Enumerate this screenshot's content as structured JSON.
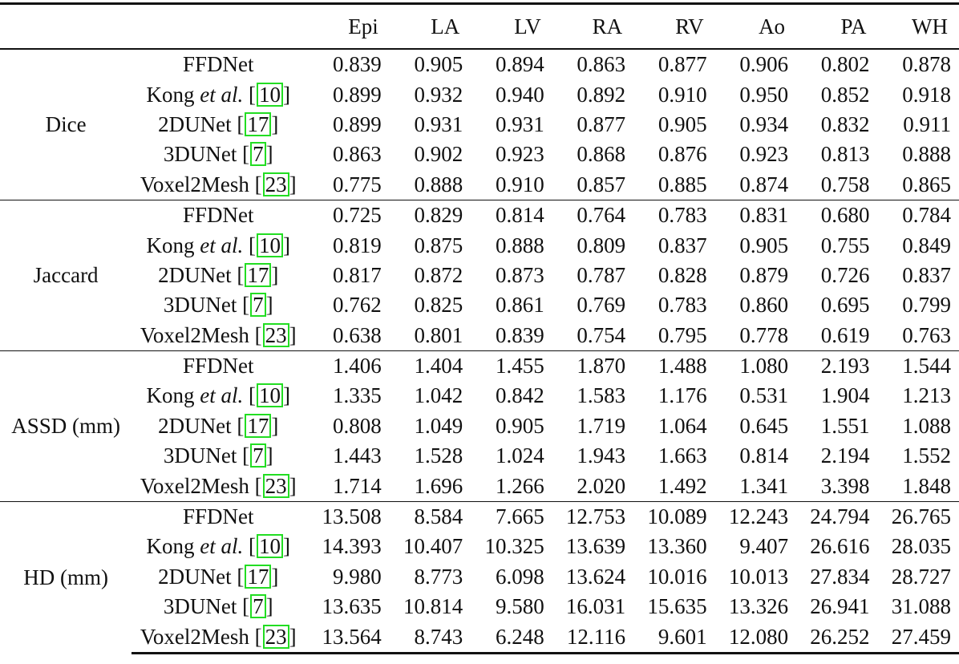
{
  "table": {
    "columns": [
      "",
      "",
      "Epi",
      "LA",
      "LV",
      "RA",
      "RV",
      "Ao",
      "PA",
      "WH"
    ],
    "citation_box_color": "#22dd22",
    "groups": [
      {
        "metric": "Dice",
        "rows": [
          {
            "method": "FFDNet",
            "method_italic": "",
            "cite": "",
            "values": [
              "0.839",
              "0.905",
              "0.894",
              "0.863",
              "0.877",
              "0.906",
              "0.802",
              "0.878"
            ]
          },
          {
            "method": "Kong ",
            "method_italic": "et al.",
            "cite": "10",
            "values": [
              "0.899",
              "0.932",
              "0.940",
              "0.892",
              "0.910",
              "0.950",
              "0.852",
              "0.918"
            ]
          },
          {
            "method": "2DUNet",
            "method_italic": "",
            "cite": "17",
            "values": [
              "0.899",
              "0.931",
              "0.931",
              "0.877",
              "0.905",
              "0.934",
              "0.832",
              "0.911"
            ]
          },
          {
            "method": "3DUNet",
            "method_italic": "",
            "cite": "7",
            "values": [
              "0.863",
              "0.902",
              "0.923",
              "0.868",
              "0.876",
              "0.923",
              "0.813",
              "0.888"
            ]
          },
          {
            "method": "Voxel2Mesh",
            "method_italic": "",
            "cite": "23",
            "values": [
              "0.775",
              "0.888",
              "0.910",
              "0.857",
              "0.885",
              "0.874",
              "0.758",
              "0.865"
            ]
          }
        ]
      },
      {
        "metric": "Jaccard",
        "rows": [
          {
            "method": "FFDNet",
            "method_italic": "",
            "cite": "",
            "values": [
              "0.725",
              "0.829",
              "0.814",
              "0.764",
              "0.783",
              "0.831",
              "0.680",
              "0.784"
            ]
          },
          {
            "method": "Kong ",
            "method_italic": "et al.",
            "cite": "10",
            "values": [
              "0.819",
              "0.875",
              "0.888",
              "0.809",
              "0.837",
              "0.905",
              "0.755",
              "0.849"
            ]
          },
          {
            "method": "2DUNet",
            "method_italic": "",
            "cite": "17",
            "values": [
              "0.817",
              "0.872",
              "0.873",
              "0.787",
              "0.828",
              "0.879",
              "0.726",
              "0.837"
            ]
          },
          {
            "method": "3DUNet",
            "method_italic": "",
            "cite": "7",
            "values": [
              "0.762",
              "0.825",
              "0.861",
              "0.769",
              "0.783",
              "0.860",
              "0.695",
              "0.799"
            ]
          },
          {
            "method": "Voxel2Mesh",
            "method_italic": "",
            "cite": "23",
            "values": [
              "0.638",
              "0.801",
              "0.839",
              "0.754",
              "0.795",
              "0.778",
              "0.619",
              "0.763"
            ]
          }
        ]
      },
      {
        "metric": "ASSD (mm)",
        "rows": [
          {
            "method": "FFDNet",
            "method_italic": "",
            "cite": "",
            "values": [
              "1.406",
              "1.404",
              "1.455",
              "1.870",
              "1.488",
              "1.080",
              "2.193",
              "1.544"
            ]
          },
          {
            "method": "Kong ",
            "method_italic": "et al.",
            "cite": "10",
            "values": [
              "1.335",
              "1.042",
              "0.842",
              "1.583",
              "1.176",
              "0.531",
              "1.904",
              "1.213"
            ]
          },
          {
            "method": "2DUNet",
            "method_italic": "",
            "cite": "17",
            "values": [
              "0.808",
              "1.049",
              "0.905",
              "1.719",
              "1.064",
              "0.645",
              "1.551",
              "1.088"
            ]
          },
          {
            "method": "3DUNet",
            "method_italic": "",
            "cite": "7",
            "values": [
              "1.443",
              "1.528",
              "1.024",
              "1.943",
              "1.663",
              "0.814",
              "2.194",
              "1.552"
            ]
          },
          {
            "method": "Voxel2Mesh",
            "method_italic": "",
            "cite": "23",
            "values": [
              "1.714",
              "1.696",
              "1.266",
              "2.020",
              "1.492",
              "1.341",
              "3.398",
              "1.848"
            ]
          }
        ]
      },
      {
        "metric": "HD (mm)",
        "rows": [
          {
            "method": "FFDNet",
            "method_italic": "",
            "cite": "",
            "values": [
              "13.508",
              "8.584",
              "7.665",
              "12.753",
              "10.089",
              "12.243",
              "24.794",
              "26.765"
            ]
          },
          {
            "method": "Kong ",
            "method_italic": "et al.",
            "cite": "10",
            "values": [
              "14.393",
              "10.407",
              "10.325",
              "13.639",
              "13.360",
              "9.407",
              "26.616",
              "28.035"
            ]
          },
          {
            "method": "2DUNet",
            "method_italic": "",
            "cite": "17",
            "values": [
              "9.980",
              "8.773",
              "6.098",
              "13.624",
              "10.016",
              "10.013",
              "27.834",
              "28.727"
            ]
          },
          {
            "method": "3DUNet",
            "method_italic": "",
            "cite": "7",
            "values": [
              "13.635",
              "10.814",
              "9.580",
              "16.031",
              "15.635",
              "13.326",
              "26.941",
              "31.088"
            ]
          },
          {
            "method": "Voxel2Mesh",
            "method_italic": "",
            "cite": "23",
            "values": [
              "13.564",
              "8.743",
              "6.248",
              "12.116",
              "9.601",
              "12.080",
              "26.252",
              "27.459"
            ]
          }
        ]
      }
    ]
  }
}
